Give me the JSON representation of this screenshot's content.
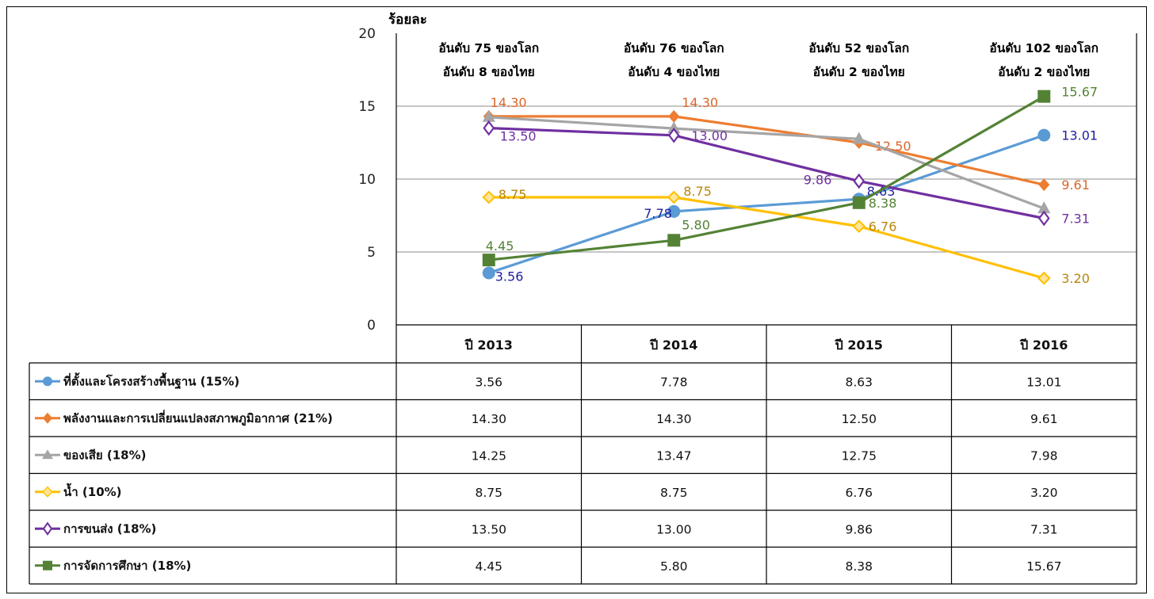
{
  "chart_data": {
    "type": "line",
    "ylabel": "ร้อยละ",
    "ylim": [
      0,
      20
    ],
    "yticks": [
      "0",
      "5",
      "10",
      "15",
      "20"
    ],
    "grid": "horizontal",
    "categories": [
      "ปี 2013",
      "ปี 2014",
      "ปี 2015",
      "ปี 2016"
    ],
    "rank_annotations": [
      [
        "อันดับ 75 ของโลก",
        "อันดับ 8 ของไทย"
      ],
      [
        "อันดับ 76 ของโลก",
        "อันดับ 4 ของไทย"
      ],
      [
        "อันดับ 52 ของโลก",
        "อันดับ 2 ของไทย"
      ],
      [
        "อันดับ 102 ของโลก",
        "อันดับ 2 ของไทย"
      ]
    ],
    "series": [
      {
        "name": "ที่ตั้งและโครงสร้างพื้นฐาน (15%)",
        "values": [
          3.56,
          7.78,
          8.63,
          13.01
        ],
        "labels": [
          "3.56",
          "7.78",
          "8.63",
          "13.01"
        ],
        "color": "#5B9BD5",
        "label_color": "#1F1F9E",
        "marker": "circle"
      },
      {
        "name": "พลังงานและการเปลี่ยนแปลงสภาพภูมิอากาศ (21%)",
        "values": [
          14.3,
          14.3,
          12.5,
          9.61
        ],
        "labels": [
          "14.30",
          "14.30",
          "12.50",
          "9.61"
        ],
        "color": "#ED7D31",
        "label_color": "#D9662A",
        "marker": "diamond"
      },
      {
        "name": "ของเสีย (18%)",
        "values": [
          14.25,
          13.47,
          12.75,
          7.98
        ],
        "labels": [
          "14.25",
          "13.47",
          "12.75",
          "7.98"
        ],
        "color": "#A5A5A5",
        "label_color": "#808080",
        "marker": "triangle"
      },
      {
        "name": "น้ำ (10%)",
        "values": [
          8.75,
          8.75,
          6.76,
          3.2
        ],
        "labels": [
          "8.75",
          "8.75",
          "6.76",
          "3.20"
        ],
        "color": "#FFC000",
        "label_color": "#B8860B",
        "marker": "hatched-diamond"
      },
      {
        "name": "การขนส่ง (18%)",
        "values": [
          13.5,
          13.0,
          9.86,
          7.31
        ],
        "labels": [
          "13.50",
          "13.00",
          "9.86",
          "7.31"
        ],
        "color": "#7030A0",
        "label_color": "#7030A0",
        "marker": "open-diamond"
      },
      {
        "name": "การจัดการศึกษา (18%)",
        "values": [
          4.45,
          5.8,
          8.38,
          15.67
        ],
        "labels": [
          "4.45",
          "5.80",
          "8.38",
          "15.67"
        ],
        "color": "#548235",
        "label_color": "#548235",
        "marker": "square"
      }
    ],
    "table": {
      "rows": [
        [
          "3.56",
          "7.78",
          "8.63",
          "13.01"
        ],
        [
          "14.30",
          "14.30",
          "12.50",
          "9.61"
        ],
        [
          "14.25",
          "13.47",
          "12.75",
          "7.98"
        ],
        [
          "8.75",
          "8.75",
          "6.76",
          "3.20"
        ],
        [
          "13.50",
          "13.00",
          "9.86",
          "7.31"
        ],
        [
          "4.45",
          "5.80",
          "8.38",
          "15.67"
        ]
      ]
    }
  }
}
